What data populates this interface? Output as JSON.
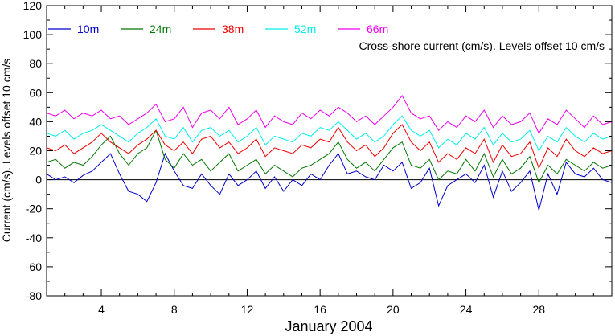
{
  "chart_data": {
    "type": "line",
    "title": "",
    "xlabel": "January 2004",
    "ylabel": "Current (cm/s). Levels offset 10 cm/s",
    "annotation": "Cross-shore current (cm/s). Levels offset 10 cm/s",
    "xlim": [
      1,
      32
    ],
    "ylim": [
      -80,
      120
    ],
    "xticks": [
      4,
      8,
      12,
      16,
      20,
      24,
      28
    ],
    "yticks": [
      -80,
      -60,
      -40,
      -20,
      0,
      20,
      40,
      60,
      80,
      100,
      120
    ],
    "x_tick_labels": [
      "4",
      "8",
      "12",
      "16",
      "20",
      "24",
      "28"
    ],
    "y_tick_labels": [
      "-80",
      "-60",
      "-40",
      "-20",
      "0",
      "20",
      "40",
      "60",
      "80",
      "100",
      "120"
    ],
    "zero_line": true,
    "grid": false,
    "legend_position": "top-left",
    "x": [
      1.0,
      1.5,
      2.0,
      2.5,
      3.0,
      3.5,
      4.0,
      4.5,
      5.0,
      5.5,
      6.0,
      6.5,
      7.0,
      7.5,
      8.0,
      8.5,
      9.0,
      9.5,
      10.0,
      10.5,
      11.0,
      11.5,
      12.0,
      12.5,
      13.0,
      13.5,
      14.0,
      14.5,
      15.0,
      15.5,
      16.0,
      16.5,
      17.0,
      17.5,
      18.0,
      18.5,
      19.0,
      19.5,
      20.0,
      20.5,
      21.0,
      21.5,
      22.0,
      22.5,
      23.0,
      23.5,
      24.0,
      24.5,
      25.0,
      25.5,
      26.0,
      26.5,
      27.0,
      27.5,
      28.0,
      28.5,
      29.0,
      29.5,
      30.0,
      30.5,
      31.0,
      31.5,
      32.0
    ],
    "series": [
      {
        "name": "10m",
        "color": "#0000cc",
        "values": [
          4,
          0,
          2,
          -2,
          3,
          6,
          12,
          18,
          4,
          -8,
          -10,
          -15,
          -2,
          18,
          6,
          -4,
          -6,
          4,
          -4,
          -10,
          4,
          -4,
          0,
          6,
          -6,
          2,
          -8,
          0,
          -4,
          4,
          0,
          10,
          18,
          4,
          6,
          2,
          0,
          10,
          6,
          12,
          -6,
          -2,
          8,
          -18,
          -4,
          0,
          4,
          -2,
          10,
          -12,
          6,
          -8,
          -2,
          6,
          -21,
          4,
          -10,
          12,
          4,
          2,
          8,
          0,
          -2
        ]
      },
      {
        "name": "24m",
        "color": "#007700",
        "values": [
          12,
          14,
          8,
          12,
          10,
          16,
          24,
          30,
          18,
          10,
          18,
          22,
          34,
          14,
          8,
          18,
          10,
          14,
          6,
          12,
          18,
          6,
          10,
          14,
          4,
          10,
          6,
          2,
          8,
          10,
          14,
          18,
          26,
          14,
          8,
          12,
          6,
          14,
          22,
          26,
          10,
          8,
          14,
          0,
          6,
          4,
          14,
          6,
          18,
          2,
          14,
          4,
          8,
          16,
          -2,
          10,
          4,
          14,
          10,
          6,
          12,
          8,
          10
        ]
      },
      {
        "name": "38m",
        "color": "#ee0000",
        "values": [
          22,
          20,
          24,
          18,
          22,
          26,
          32,
          26,
          22,
          18,
          24,
          28,
          34,
          24,
          20,
          26,
          18,
          28,
          30,
          22,
          26,
          18,
          22,
          28,
          16,
          22,
          20,
          18,
          24,
          22,
          28,
          26,
          36,
          26,
          20,
          24,
          16,
          22,
          32,
          38,
          26,
          20,
          26,
          12,
          18,
          14,
          22,
          18,
          28,
          12,
          24,
          16,
          18,
          26,
          8,
          22,
          16,
          28,
          20,
          16,
          22,
          18,
          20
        ]
      },
      {
        "name": "52m",
        "color": "#00eeee",
        "values": [
          32,
          30,
          34,
          28,
          32,
          34,
          38,
          34,
          30,
          26,
          32,
          36,
          42,
          30,
          28,
          36,
          26,
          34,
          36,
          30,
          34,
          26,
          30,
          36,
          24,
          30,
          28,
          26,
          32,
          30,
          36,
          34,
          40,
          34,
          28,
          32,
          26,
          30,
          38,
          44,
          34,
          30,
          34,
          22,
          28,
          24,
          32,
          28,
          36,
          24,
          32,
          26,
          28,
          34,
          20,
          30,
          26,
          36,
          30,
          26,
          32,
          28,
          30
        ]
      },
      {
        "name": "66m",
        "color": "#ee00ee",
        "values": [
          46,
          44,
          48,
          42,
          46,
          44,
          48,
          42,
          44,
          38,
          42,
          46,
          52,
          40,
          42,
          50,
          36,
          46,
          48,
          42,
          50,
          38,
          42,
          48,
          36,
          44,
          40,
          38,
          46,
          42,
          48,
          44,
          50,
          46,
          40,
          44,
          38,
          44,
          50,
          58,
          46,
          42,
          44,
          34,
          40,
          36,
          44,
          40,
          48,
          36,
          44,
          38,
          40,
          46,
          32,
          42,
          38,
          48,
          42,
          36,
          44,
          38,
          40
        ]
      }
    ]
  }
}
